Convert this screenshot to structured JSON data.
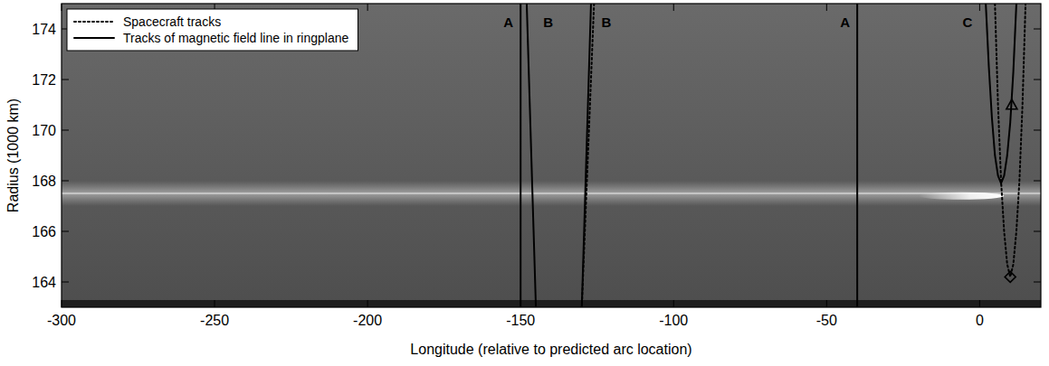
{
  "chart_data": {
    "type": "line",
    "xlabel": "Longitude (relative to predicted arc location)",
    "ylabel": "Radius (1000 km)",
    "xlim": [
      -300,
      20
    ],
    "ylim": [
      163,
      175
    ],
    "xticks": [
      -300,
      -250,
      -200,
      -150,
      -100,
      -50,
      0
    ],
    "yticks": [
      164,
      166,
      168,
      170,
      172,
      174
    ],
    "legend": "upper left",
    "ring_radius": 167.5,
    "arc": {
      "x": [
        -20,
        8
      ],
      "y": 167.4
    },
    "series": [
      {
        "name": "Spacecraft tracks",
        "color": "#000000",
        "line_style": "dotted",
        "x": [
          -126,
          -128,
          -130,
          null,
          5,
          6,
          7,
          8,
          9,
          10,
          11,
          12,
          13,
          14,
          15
        ],
        "y": [
          175,
          169,
          163,
          null,
          175,
          171,
          168,
          166,
          164.7,
          164.2,
          164.7,
          166,
          168,
          171,
          175
        ]
      },
      {
        "name": "Tracks of magnetic field line in ringplane",
        "color": "#000000",
        "line_style": "solid",
        "x": [
          -150,
          -150,
          null,
          -148,
          -145,
          null,
          -127,
          -130,
          null,
          -40,
          -40,
          null,
          2,
          3,
          4,
          5,
          6,
          7,
          8,
          9,
          10,
          11,
          12
        ],
        "y": [
          163,
          175,
          null,
          175,
          163,
          null,
          175,
          163,
          null,
          163,
          175,
          null,
          175,
          172.5,
          170.5,
          169,
          168.2,
          167.9,
          168.2,
          169,
          170.3,
          172.3,
          175
        ]
      },
      {
        "type": "scatter",
        "marker": "triangle",
        "color": "#000000",
        "x": [
          10.5
        ],
        "y": [
          171
        ]
      },
      {
        "type": "scatter",
        "marker": "diamond",
        "color": "#000000",
        "x": [
          10
        ],
        "y": [
          164.2
        ]
      }
    ],
    "annotations": [
      {
        "text": "A",
        "x": -154,
        "y": 174.3
      },
      {
        "text": "B",
        "x": -141,
        "y": 174.3
      },
      {
        "text": "B",
        "x": -122,
        "y": 174.3
      },
      {
        "text": "A",
        "x": -44,
        "y": 174.3
      },
      {
        "text": "C",
        "x": -4,
        "y": 174.3
      }
    ]
  }
}
